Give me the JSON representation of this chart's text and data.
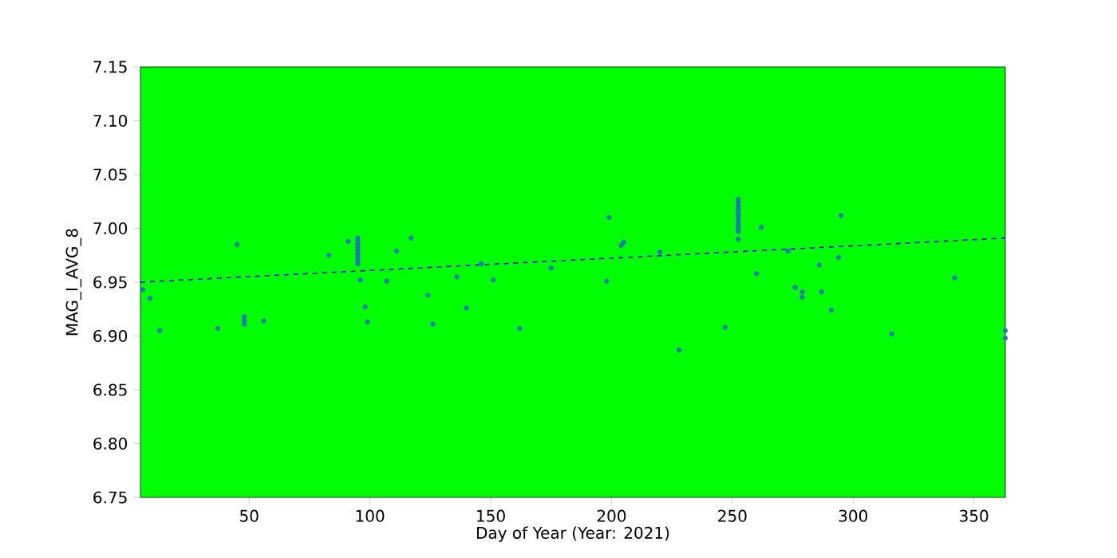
{
  "chart_data": {
    "type": "scatter",
    "xlabel": "Day of Year (Year: 2021)",
    "ylabel": "MAG_I_AVG_8",
    "xlim": [
      5,
      363
    ],
    "ylim": [
      6.75,
      7.15
    ],
    "xticks": [
      50,
      100,
      150,
      200,
      250,
      300,
      350
    ],
    "yticks": [
      6.75,
      {
        "value": 6.8,
        "label": "6.80"
      },
      6.85,
      {
        "value": 6.9,
        "label": "6.90"
      },
      6.95,
      {
        "value": 7.0,
        "label": "7.00"
      },
      7.05,
      {
        "value": 7.1,
        "label": "7.10"
      },
      7.15
    ],
    "grid": false,
    "series": [
      {
        "color": "#1f77b4",
        "marker": "circle",
        "x": [
          6,
          9,
          13,
          37,
          45,
          48,
          48,
          48,
          56,
          83,
          91,
          95,
          95,
          95,
          95,
          95,
          95,
          95,
          95,
          95,
          96,
          98,
          99,
          107,
          111,
          117,
          124,
          126,
          136,
          140,
          146,
          151,
          162,
          175,
          198,
          199,
          204,
          205,
          220,
          228,
          247,
          252.5,
          252.5,
          252.5,
          252.5,
          252.5,
          252.5,
          252.5,
          252.5,
          252.5,
          252.5,
          252.5,
          252.5,
          260,
          262,
          273,
          276,
          279,
          279,
          286,
          287,
          291,
          294,
          295,
          316,
          342,
          363,
          363
        ],
        "values": [
          6.943,
          6.935,
          6.905,
          6.907,
          6.985,
          6.918,
          6.914,
          6.911,
          6.914,
          6.975,
          6.988,
          6.991,
          6.988,
          6.985,
          6.982,
          6.979,
          6.976,
          6.973,
          6.97,
          6.967,
          6.952,
          6.927,
          6.913,
          6.951,
          6.979,
          6.991,
          6.938,
          6.911,
          6.955,
          6.926,
          6.967,
          6.952,
          6.907,
          6.963,
          6.951,
          7.01,
          6.984,
          6.987,
          6.978,
          6.887,
          6.908,
          7.027,
          7.024,
          7.021,
          7.018,
          7.015,
          7.012,
          7.009,
          7.006,
          7.003,
          7.0,
          6.997,
          6.99,
          6.958,
          7.001,
          6.979,
          6.945,
          6.941,
          6.936,
          6.966,
          6.941,
          6.924,
          6.973,
          7.012,
          6.902,
          6.954,
          6.905,
          6.898
        ]
      },
      {
        "type": "line",
        "color": "#0000ff",
        "line_style": "dashed",
        "marker": "none",
        "x": [
          5,
          363
        ],
        "values": [
          6.95,
          6.991
        ]
      }
    ]
  }
}
